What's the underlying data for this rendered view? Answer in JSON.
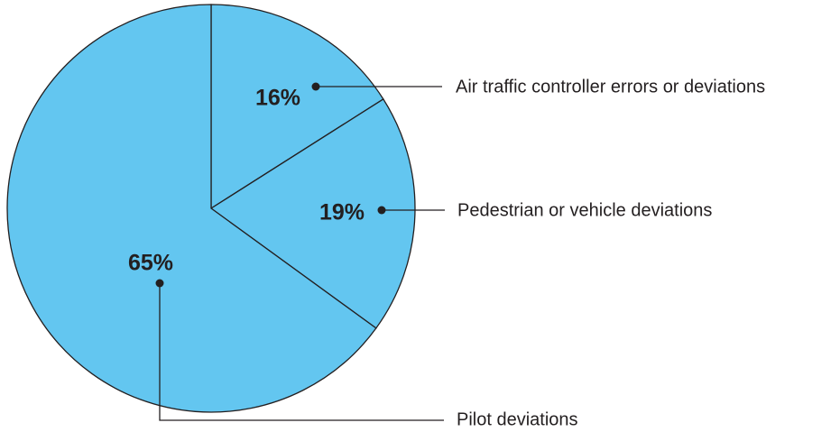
{
  "chart_data": {
    "type": "pie",
    "categories": [
      "Air traffic controller errors or deviations",
      "Pedestrian or vehicle deviations",
      "Pilot deviations"
    ],
    "values": [
      16,
      19,
      65
    ],
    "value_labels": [
      "16%",
      "19%",
      "65%"
    ],
    "color": "#63c6f0"
  }
}
